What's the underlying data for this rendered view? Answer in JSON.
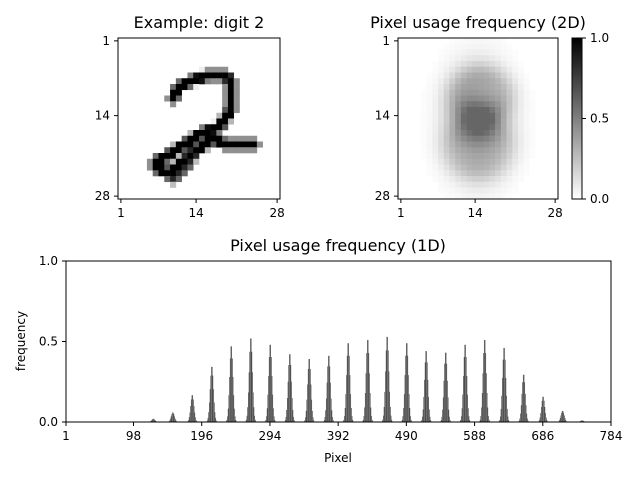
{
  "chart_data": [
    {
      "type": "heatmap",
      "title": "Example: digit 2",
      "colormap": "gray_r",
      "xticks": [
        "1",
        "14",
        "28"
      ],
      "yticks": [
        "1",
        "14",
        "28"
      ],
      "grid": false,
      "description_strokes": "handwritten digit 2, dark on white"
    },
    {
      "type": "heatmap",
      "title": "Pixel usage frequency (2D)",
      "colormap": "gray_r",
      "xticks": [
        "1",
        "14",
        "28"
      ],
      "yticks": [
        "1",
        "14",
        "28"
      ],
      "colorbar": {
        "range": [
          0.0,
          1.0
        ],
        "ticks": [
          "0.0",
          "0.5",
          "1.0"
        ]
      },
      "grid": false
    },
    {
      "type": "bar",
      "title": "Pixel usage frequency (1D)",
      "xlabel": "Pixel",
      "ylabel": "frequency",
      "xlim": [
        1,
        784
      ],
      "ylim": [
        0.0,
        1.0
      ],
      "xticks": [
        "1",
        "98",
        "196",
        "294",
        "392",
        "490",
        "588",
        "686",
        "784"
      ],
      "yticks": [
        "0.0",
        "0.5",
        "1.0"
      ],
      "bar_color": "#4d4d4d",
      "row_peaks": [
        {
          "row": 4,
          "peak": 0.02
        },
        {
          "row": 5,
          "peak": 0.06
        },
        {
          "row": 6,
          "peak": 0.17
        },
        {
          "row": 7,
          "peak": 0.35
        },
        {
          "row": 8,
          "peak": 0.48
        },
        {
          "row": 9,
          "peak": 0.53
        },
        {
          "row": 10,
          "peak": 0.49
        },
        {
          "row": 11,
          "peak": 0.43
        },
        {
          "row": 12,
          "peak": 0.4
        },
        {
          "row": 13,
          "peak": 0.42
        },
        {
          "row": 14,
          "peak": 0.5
        },
        {
          "row": 15,
          "peak": 0.52
        },
        {
          "row": 16,
          "peak": 0.54
        },
        {
          "row": 17,
          "peak": 0.5
        },
        {
          "row": 18,
          "peak": 0.45
        },
        {
          "row": 19,
          "peak": 0.44
        },
        {
          "row": 20,
          "peak": 0.49
        },
        {
          "row": 21,
          "peak": 0.52
        },
        {
          "row": 22,
          "peak": 0.47
        },
        {
          "row": 23,
          "peak": 0.3
        },
        {
          "row": 24,
          "peak": 0.16
        },
        {
          "row": 25,
          "peak": 0.07
        },
        {
          "row": 26,
          "peak": 0.01
        }
      ]
    }
  ]
}
